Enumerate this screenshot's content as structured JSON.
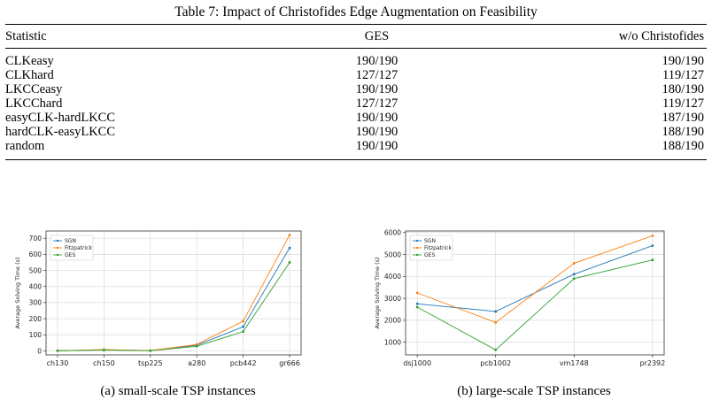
{
  "table": {
    "caption": "Table 7: Impact of Christofides Edge Augmentation on Feasibility",
    "headers": [
      "Statistic",
      "GES",
      "w/o Christofides"
    ],
    "rows": [
      [
        "CLKeasy",
        "190/190",
        "190/190"
      ],
      [
        "CLKhard",
        "127/127",
        "119/127"
      ],
      [
        "LKCCeasy",
        "190/190",
        "180/190"
      ],
      [
        "LKCChard",
        "127/127",
        "119/127"
      ],
      [
        "easyCLK-hardLKCC",
        "190/190",
        "187/190"
      ],
      [
        "hardCLK-easyLKCC",
        "190/190",
        "188/190"
      ],
      [
        "random",
        "190/190",
        "188/190"
      ]
    ]
  },
  "colors": {
    "SGN": "#1f77b4",
    "Fitzpatrick": "#ff7f0e",
    "GES": "#2ca02c"
  },
  "chart_data": [
    {
      "type": "line",
      "caption": "(a) small-scale TSP instances",
      "categories": [
        "ch130",
        "ch150",
        "tsp225",
        "a280",
        "pcb442",
        "gr666"
      ],
      "ylabel": "Average Solving Time (s)",
      "ylim": [
        -25,
        745
      ],
      "yticks": [
        0,
        100,
        200,
        300,
        400,
        500,
        600,
        700
      ],
      "grid": true,
      "legend": "top-left",
      "series": [
        {
          "name": "SGN",
          "values": [
            1,
            6,
            2,
            35,
            150,
            640
          ]
        },
        {
          "name": "Fitzpatrick",
          "values": [
            1,
            8,
            2,
            40,
            185,
            720
          ]
        },
        {
          "name": "GES",
          "values": [
            1,
            5,
            1,
            28,
            120,
            550
          ]
        }
      ]
    },
    {
      "type": "line",
      "caption": "(b) large-scale TSP instances",
      "categories": [
        "dsj1000",
        "pcb1002",
        "vm1748",
        "pr2392"
      ],
      "ylabel": "Average Solving Time (s)",
      "ylim": [
        420,
        6070
      ],
      "yticks": [
        1000,
        2000,
        3000,
        4000,
        5000,
        6000
      ],
      "grid": true,
      "legend": "top-left",
      "series": [
        {
          "name": "SGN",
          "values": [
            2750,
            2400,
            4100,
            5400
          ]
        },
        {
          "name": "Fitzpatrick",
          "values": [
            3250,
            1900,
            4600,
            5850
          ]
        },
        {
          "name": "GES",
          "values": [
            2600,
            650,
            3900,
            4750
          ]
        }
      ]
    }
  ]
}
